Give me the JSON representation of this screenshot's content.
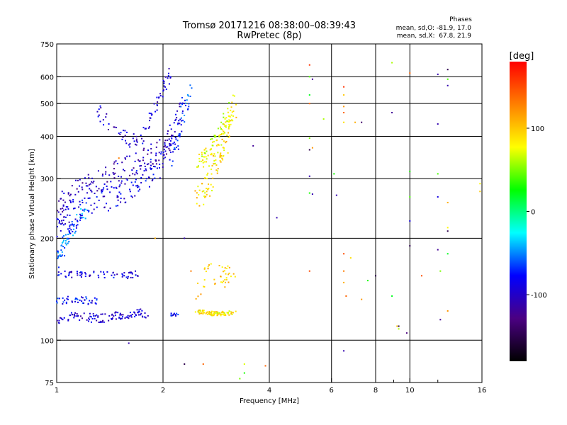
{
  "chart_data": {
    "type": "scatter",
    "title": "Tromsø 20171216 08:38:00–08:39:43",
    "subtitle": "RwPretec (8p)",
    "xlabel": "Frequency [MHz]",
    "ylabel": "Stationary phase Virtual Height [km]",
    "x_scale": "log",
    "y_scale": "log",
    "xlim": [
      1,
      16
    ],
    "ylim": [
      75,
      750
    ],
    "x_ticks": [
      1,
      2,
      4,
      6,
      8,
      10,
      16
    ],
    "x_minor_ticks": [
      9,
      12
    ],
    "y_ticks": [
      75,
      100,
      200,
      300,
      400,
      500,
      600,
      750
    ],
    "grid": true,
    "stats": {
      "heading": "Phases",
      "line1": "mean, sd,O: -81.9, 17.0",
      "line2": "mean, sd,X:  67.8, 21.9"
    },
    "colorbar": {
      "label": "[deg]",
      "range": [
        -180,
        180
      ],
      "ticks": [
        100,
        0,
        -100
      ],
      "colors": [
        "#000000",
        "#4b0082",
        "#0000ff",
        "#00ffff",
        "#00ff00",
        "#ffff00",
        "#ff8000",
        "#ff0000"
      ]
    },
    "traces": [
      {
        "x": [
          1.0,
          1.05,
          1.1,
          1.2,
          1.3,
          1.4,
          1.5,
          1.6,
          1.7,
          1.8,
          1.9,
          2.0,
          2.1,
          2.2,
          2.3
        ],
        "y": [
          205,
          220,
          235,
          248,
          258,
          266,
          275,
          284,
          293,
          305,
          320,
          345,
          380,
          440,
          520
        ],
        "phase": -90,
        "spread": 0.1
      },
      {
        "x": [
          1.0,
          1.05,
          1.1,
          1.2,
          1.3,
          1.4,
          1.55,
          1.7,
          1.85,
          2.0,
          2.1
        ],
        "y": [
          240,
          258,
          268,
          282,
          295,
          308,
          322,
          335,
          350,
          370,
          390
        ],
        "phase": -105,
        "spread": 0.08
      },
      {
        "x": [
          1.0,
          1.03,
          1.06,
          1.1,
          1.15,
          1.2
        ],
        "y": [
          170,
          180,
          195,
          210,
          225,
          240
        ],
        "phase": -55,
        "spread": 0.05
      },
      {
        "x": [
          1.3,
          1.45,
          1.6,
          1.75,
          1.9,
          2.0,
          2.1
        ],
        "y": [
          480,
          420,
          390,
          400,
          480,
          560,
          630
        ],
        "phase": -95,
        "spread": 0.05
      },
      {
        "x": [
          2.1,
          2.2,
          2.3,
          2.4
        ],
        "y": [
          340,
          400,
          480,
          560
        ],
        "phase": -70,
        "spread": 0.06
      },
      {
        "x": [
          2.5,
          2.6,
          2.7,
          2.8,
          2.9,
          3.0,
          3.1,
          3.2
        ],
        "y": [
          265,
          275,
          295,
          320,
          345,
          375,
          420,
          500
        ],
        "phase": 90,
        "spread": 0.09
      },
      {
        "x": [
          2.5,
          2.6,
          2.7,
          2.8,
          2.9,
          3.0,
          3.1
        ],
        "y": [
          330,
          345,
          360,
          380,
          400,
          440,
          480
        ],
        "phase": 75,
        "spread": 0.06
      },
      {
        "x": [
          1.0,
          1.1,
          1.2,
          1.3,
          1.4,
          1.5,
          1.6,
          1.7,
          1.8
        ],
        "y": [
          115,
          118,
          117,
          116,
          117,
          118,
          119,
          120,
          118
        ],
        "phase": -95,
        "spread": 0.03
      },
      {
        "x": [
          1.0,
          1.1,
          1.2,
          1.3
        ],
        "y": [
          130,
          132,
          131,
          130
        ],
        "phase": -80,
        "spread": 0.025
      },
      {
        "x": [
          2.1,
          2.2
        ],
        "y": [
          119,
          119
        ],
        "phase": -85,
        "spread": 0.01
      },
      {
        "x": [
          2.5,
          2.6,
          2.7,
          2.8,
          2.9,
          3.0,
          3.2
        ],
        "y": [
          121,
          121,
          120,
          120,
          120,
          120,
          121
        ],
        "phase": 85,
        "spread": 0.015
      },
      {
        "x": [
          1.0,
          1.1,
          1.2,
          1.4,
          1.6,
          1.7
        ],
        "y": [
          158,
          156,
          157,
          156,
          155,
          158
        ],
        "phase": -90,
        "spread": 0.02
      },
      {
        "x": [
          2.5,
          2.7,
          3.0,
          3.2
        ],
        "y": [
          138,
          160,
          155,
          160
        ],
        "phase": 100,
        "spread": 0.08
      }
    ],
    "points": [
      {
        "x": 4.2,
        "y": 230,
        "phase": -110
      },
      {
        "x": 5.2,
        "y": 650,
        "phase": 160
      },
      {
        "x": 5.2,
        "y": 600,
        "phase": 40
      },
      {
        "x": 5.3,
        "y": 590,
        "phase": -120
      },
      {
        "x": 5.2,
        "y": 530,
        "phase": 20
      },
      {
        "x": 5.2,
        "y": 500,
        "phase": 140
      },
      {
        "x": 5.2,
        "y": 395,
        "phase": 50
      },
      {
        "x": 5.2,
        "y": 365,
        "phase": -150
      },
      {
        "x": 5.3,
        "y": 370,
        "phase": 120
      },
      {
        "x": 5.2,
        "y": 305,
        "phase": -110
      },
      {
        "x": 5.2,
        "y": 272,
        "phase": 30
      },
      {
        "x": 5.3,
        "y": 270,
        "phase": -110
      },
      {
        "x": 5.2,
        "y": 160,
        "phase": 150
      },
      {
        "x": 5.7,
        "y": 450,
        "phase": 60
      },
      {
        "x": 6.1,
        "y": 310,
        "phase": 30
      },
      {
        "x": 6.2,
        "y": 268,
        "phase": -110
      },
      {
        "x": 6.5,
        "y": 560,
        "phase": 160
      },
      {
        "x": 6.5,
        "y": 530,
        "phase": 100
      },
      {
        "x": 6.5,
        "y": 490,
        "phase": 120
      },
      {
        "x": 6.5,
        "y": 470,
        "phase": 140
      },
      {
        "x": 6.5,
        "y": 440,
        "phase": 90
      },
      {
        "x": 6.5,
        "y": 180,
        "phase": 150
      },
      {
        "x": 6.5,
        "y": 160,
        "phase": 130
      },
      {
        "x": 6.5,
        "y": 148,
        "phase": 110
      },
      {
        "x": 6.6,
        "y": 135,
        "phase": 140
      },
      {
        "x": 6.5,
        "y": 93,
        "phase": -110
      },
      {
        "x": 6.8,
        "y": 175,
        "phase": 90
      },
      {
        "x": 7.0,
        "y": 440,
        "phase": 110
      },
      {
        "x": 7.3,
        "y": 440,
        "phase": -140
      },
      {
        "x": 7.3,
        "y": 132,
        "phase": 120
      },
      {
        "x": 7.6,
        "y": 150,
        "phase": 30
      },
      {
        "x": 8.0,
        "y": 155,
        "phase": -150
      },
      {
        "x": 8.9,
        "y": 660,
        "phase": 60
      },
      {
        "x": 8.9,
        "y": 470,
        "phase": -120
      },
      {
        "x": 8.9,
        "y": 135,
        "phase": 20
      },
      {
        "x": 9.2,
        "y": 110,
        "phase": 100
      },
      {
        "x": 9.3,
        "y": 110,
        "phase": -150
      },
      {
        "x": 9.3,
        "y": 108,
        "phase": 60
      },
      {
        "x": 9.8,
        "y": 105,
        "phase": -130
      },
      {
        "x": 10.0,
        "y": 615,
        "phase": 140
      },
      {
        "x": 10.0,
        "y": 315,
        "phase": 30
      },
      {
        "x": 10.0,
        "y": 265,
        "phase": 40
      },
      {
        "x": 10.0,
        "y": 225,
        "phase": -90
      },
      {
        "x": 10.0,
        "y": 190,
        "phase": -150
      },
      {
        "x": 10.8,
        "y": 155,
        "phase": 150
      },
      {
        "x": 12.0,
        "y": 610,
        "phase": -110
      },
      {
        "x": 12.0,
        "y": 435,
        "phase": -110
      },
      {
        "x": 12.0,
        "y": 310,
        "phase": 40
      },
      {
        "x": 12.0,
        "y": 265,
        "phase": -90
      },
      {
        "x": 12.0,
        "y": 185,
        "phase": -120
      },
      {
        "x": 12.2,
        "y": 160,
        "phase": 50
      },
      {
        "x": 12.2,
        "y": 115,
        "phase": -120
      },
      {
        "x": 12.8,
        "y": 630,
        "phase": -150
      },
      {
        "x": 12.8,
        "y": 590,
        "phase": 40
      },
      {
        "x": 12.8,
        "y": 565,
        "phase": -110
      },
      {
        "x": 12.8,
        "y": 255,
        "phase": 110
      },
      {
        "x": 12.8,
        "y": 215,
        "phase": 80
      },
      {
        "x": 12.8,
        "y": 210,
        "phase": -150
      },
      {
        "x": 12.8,
        "y": 180,
        "phase": 20
      },
      {
        "x": 12.8,
        "y": 122,
        "phase": 120
      },
      {
        "x": 15.8,
        "y": 290,
        "phase": 80
      },
      {
        "x": 15.8,
        "y": 275,
        "phase": 100
      },
      {
        "x": 3.4,
        "y": 85,
        "phase": 70
      },
      {
        "x": 3.4,
        "y": 80,
        "phase": 30
      },
      {
        "x": 3.3,
        "y": 77,
        "phase": 50
      },
      {
        "x": 3.9,
        "y": 84,
        "phase": 140
      },
      {
        "x": 2.3,
        "y": 85,
        "phase": -150
      },
      {
        "x": 2.6,
        "y": 85,
        "phase": 140
      },
      {
        "x": 1.6,
        "y": 98,
        "phase": -110
      },
      {
        "x": 1.9,
        "y": 200,
        "phase": 110
      },
      {
        "x": 2.3,
        "y": 200,
        "phase": -110
      },
      {
        "x": 2.4,
        "y": 160,
        "phase": 130
      },
      {
        "x": 3.6,
        "y": 375,
        "phase": -120
      },
      {
        "x": 1.5,
        "y": 345,
        "phase": 130
      }
    ]
  }
}
